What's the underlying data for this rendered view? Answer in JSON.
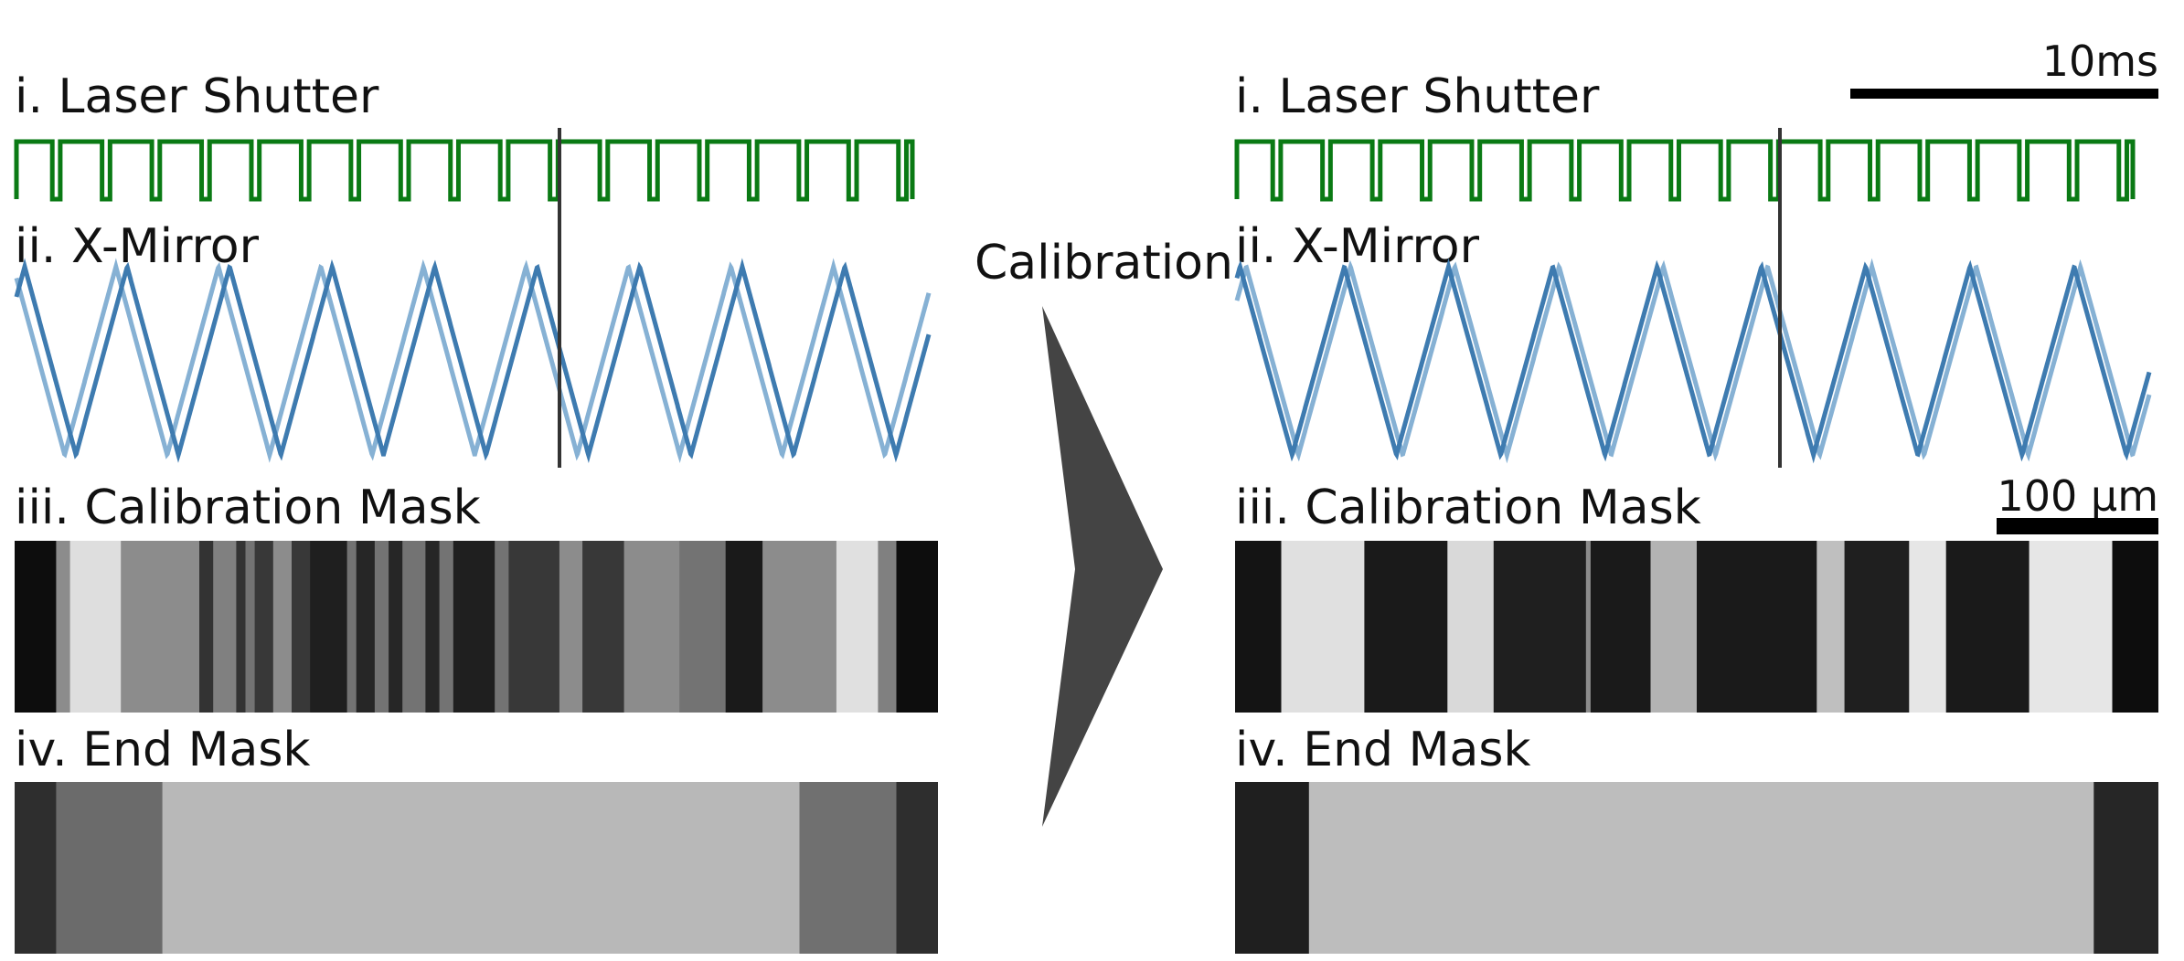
{
  "left": {
    "label_shutter": "i. Laser Shutter",
    "label_mirror": "ii. X-Mirror",
    "label_calib": "iii. Calibration Mask",
    "label_end": "iv. End Mask"
  },
  "right": {
    "label_shutter": "i. Laser Shutter",
    "label_mirror": "ii. X-Mirror",
    "label_calib": "iii. Calibration Mask",
    "label_end": "iv. End Mask",
    "time_scale": "10ms",
    "space_scale": "100 µm"
  },
  "middle": {
    "title": "Calibration"
  },
  "colors": {
    "shutter": "#0a7a14",
    "mirror_dark": "#3e7bb0",
    "mirror_light": "#86b1d4",
    "marker": "#333333",
    "arrow": "#444444"
  },
  "signals": {
    "shutter_pulses": 18,
    "mirror_periods_left": 8.9,
    "mirror_periods_right": 8.75
  },
  "masks": {
    "left_calib": [
      [
        0.0,
        0.045,
        0.05
      ],
      [
        0.045,
        0.06,
        0.55
      ],
      [
        0.06,
        0.115,
        0.87
      ],
      [
        0.115,
        0.13,
        0.55
      ],
      [
        0.13,
        0.2,
        0.55
      ],
      [
        0.2,
        0.215,
        0.2
      ],
      [
        0.215,
        0.24,
        0.5
      ],
      [
        0.24,
        0.25,
        0.2
      ],
      [
        0.25,
        0.26,
        0.45
      ],
      [
        0.26,
        0.28,
        0.22
      ],
      [
        0.28,
        0.3,
        0.55
      ],
      [
        0.3,
        0.32,
        0.22
      ],
      [
        0.32,
        0.36,
        0.12
      ],
      [
        0.36,
        0.37,
        0.45
      ],
      [
        0.37,
        0.39,
        0.15
      ],
      [
        0.39,
        0.405,
        0.45
      ],
      [
        0.405,
        0.42,
        0.15
      ],
      [
        0.42,
        0.445,
        0.45
      ],
      [
        0.445,
        0.46,
        0.15
      ],
      [
        0.46,
        0.475,
        0.45
      ],
      [
        0.475,
        0.52,
        0.12
      ],
      [
        0.52,
        0.535,
        0.45
      ],
      [
        0.535,
        0.59,
        0.22
      ],
      [
        0.59,
        0.615,
        0.55
      ],
      [
        0.615,
        0.66,
        0.22
      ],
      [
        0.66,
        0.72,
        0.55
      ],
      [
        0.72,
        0.77,
        0.45
      ],
      [
        0.77,
        0.81,
        0.1
      ],
      [
        0.81,
        0.89,
        0.55
      ],
      [
        0.89,
        0.935,
        0.88
      ],
      [
        0.935,
        0.955,
        0.5
      ],
      [
        0.955,
        1.0,
        0.05
      ]
    ],
    "left_end": [
      [
        0.0,
        0.045,
        0.18
      ],
      [
        0.045,
        0.16,
        0.42
      ],
      [
        0.16,
        0.85,
        0.72
      ],
      [
        0.85,
        0.955,
        0.44
      ],
      [
        0.955,
        1.0,
        0.18
      ]
    ],
    "right_calib": [
      [
        0.0,
        0.05,
        0.08
      ],
      [
        0.05,
        0.14,
        0.88
      ],
      [
        0.14,
        0.23,
        0.1
      ],
      [
        0.23,
        0.28,
        0.85
      ],
      [
        0.28,
        0.38,
        0.12
      ],
      [
        0.38,
        0.385,
        0.55
      ],
      [
        0.385,
        0.45,
        0.1
      ],
      [
        0.45,
        0.5,
        0.7
      ],
      [
        0.5,
        0.63,
        0.1
      ],
      [
        0.63,
        0.66,
        0.75
      ],
      [
        0.66,
        0.73,
        0.12
      ],
      [
        0.73,
        0.77,
        0.9
      ],
      [
        0.77,
        0.86,
        0.1
      ],
      [
        0.86,
        0.95,
        0.9
      ],
      [
        0.95,
        1.0,
        0.05
      ]
    ],
    "right_end": [
      [
        0.0,
        0.08,
        0.12
      ],
      [
        0.08,
        0.93,
        0.74
      ],
      [
        0.93,
        1.0,
        0.15
      ]
    ]
  }
}
